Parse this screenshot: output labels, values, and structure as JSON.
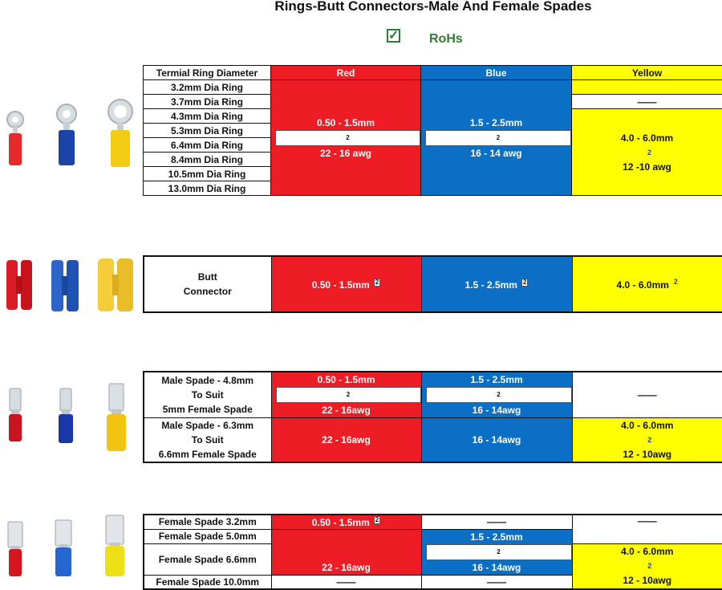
{
  "title": "Rings-Butt Connectors-Male And Female Spades",
  "rohs": {
    "label": "RoHs",
    "check": "✓"
  },
  "colors": {
    "red": "#ee1c25",
    "blue": "#0b6fc6",
    "yellow": "#ffff00"
  },
  "dash": "——",
  "ring_table": {
    "header": {
      "label": "Termial Ring Diameter",
      "red": "Red",
      "blue": "Blue",
      "yellow": "Yellow"
    },
    "rows": [
      "3.2mm Dia Ring",
      "3.7mm Dia Ring",
      "4.3mm Dia Ring",
      "5.3mm Dia Ring",
      "6.4mm Dia Ring",
      "8.4mm Dia Ring",
      "10.5mm Dia Ring",
      "13.0mm Dia Ring"
    ],
    "red": {
      "mm": "0.50 - 1.5mm",
      "sup": "2",
      "awg": "22 - 16 awg"
    },
    "blue": {
      "mm": "1.5 - 2.5mm",
      "sup": "2",
      "awg": "16 - 14 awg"
    },
    "yellow": {
      "mm": "4.0 - 6.0mm",
      "sup": "2",
      "awg": "12 -10 awg"
    }
  },
  "butt_table": {
    "label_line1": "Butt",
    "label_line2": "Connector",
    "red": {
      "mm": "0.50 - 1.5mm",
      "sup": "2"
    },
    "blue": {
      "mm": "1.5 - 2.5mm",
      "sup": "2"
    },
    "yellow": {
      "mm": "4.0 - 6.0mm",
      "sup": "2"
    }
  },
  "male_table": {
    "row1": {
      "label": [
        "Male Spade - 4.8mm",
        "To Suit",
        "5mm Female Spade"
      ],
      "red_mm": "0.50 - 1.5mm",
      "red_awg": "22 - 16awg",
      "blue_mm": "1.5 - 2.5mm",
      "blue_awg": "16 - 14awg"
    },
    "row2": {
      "label": [
        "Male Spade - 6.3mm",
        "To Suit",
        "6.6mm Female Spade"
      ],
      "red_awg": "22 - 16awg",
      "blue_awg": "16 - 14awg",
      "yellow_mm": "4.0 - 6.0mm",
      "yellow_awg": "12 - 10awg"
    },
    "sup": "2"
  },
  "female_table": {
    "rows": [
      "Female Spade 3.2mm",
      "Female Spade 5.0mm",
      "Female Spade 6.6mm",
      "Female Spade 10.0mm"
    ],
    "red_mm": "0.50 - 1.5mm",
    "red_awg": "22 - 16awg",
    "blue_mm": "1.5 - 2.5mm",
    "blue_awg": "16 - 14awg",
    "yellow_mm": "4.0 - 6.0mm",
    "yellow_awg": "12 - 10awg",
    "sup": "2"
  },
  "images": {
    "ring": [
      "red-ring-terminal-icon",
      "blue-ring-terminal-icon",
      "yellow-ring-terminal-icon"
    ],
    "butt": [
      "red-butt-connector-icon",
      "blue-butt-connector-icon",
      "yellow-butt-connector-icon"
    ],
    "male": [
      "red-male-spade-icon",
      "blue-male-spade-icon",
      "yellow-male-spade-icon"
    ],
    "female": [
      "red-female-spade-icon",
      "blue-female-spade-icon",
      "yellow-female-spade-icon"
    ]
  }
}
